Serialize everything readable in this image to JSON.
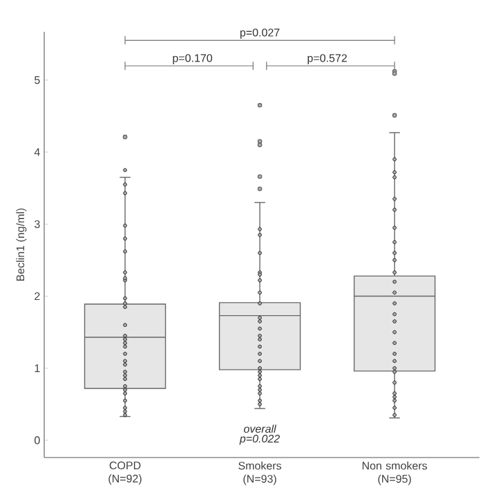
{
  "chart_data": {
    "type": "box",
    "ylabel": "Beclin1 (ng/ml)",
    "categories": [
      "COPD (N=92)",
      "Smokers (N=93)",
      "Non smokers (N=95)"
    ],
    "ylim": [
      -0.24,
      5.67
    ],
    "yticks": [
      0,
      1,
      2,
      3,
      4,
      5
    ],
    "grid": false,
    "color": "#e6e6e6",
    "boxes": [
      {
        "low": 0.33,
        "q1": 0.72,
        "median": 1.43,
        "q3": 1.89,
        "high": 3.65,
        "outliers": [
          4.21
        ]
      },
      {
        "low": 0.44,
        "q1": 0.98,
        "median": 1.73,
        "q3": 1.91,
        "high": 3.3,
        "outliers": [
          4.65,
          4.15,
          4.1,
          3.66,
          3.49
        ]
      },
      {
        "low": 0.31,
        "q1": 0.96,
        "median": 2.0,
        "q3": 2.28,
        "high": 4.27,
        "outliers": [
          5.12,
          5.09,
          4.51
        ]
      }
    ],
    "series": [
      {
        "type": "scatter",
        "color": "#aaaaaa",
        "marker": "circle",
        "x": [
          "COPD (N=92)",
          "COPD (N=92)",
          "COPD (N=92)",
          "COPD (N=92)",
          "COPD (N=92)",
          "COPD (N=92)",
          "COPD (N=92)",
          "COPD (N=92)",
          "COPD (N=92)",
          "COPD (N=92)",
          "COPD (N=92)",
          "COPD (N=92)",
          "COPD (N=92)",
          "COPD (N=92)",
          "COPD (N=92)",
          "COPD (N=92)",
          "COPD (N=92)",
          "COPD (N=92)",
          "COPD (N=92)",
          "COPD (N=92)",
          "COPD (N=92)",
          "COPD (N=92)",
          "COPD (N=92)",
          "COPD (N=92)",
          "COPD (N=92)",
          "COPD (N=92)",
          "COPD (N=92)",
          "COPD (N=92)",
          "COPD (N=92)",
          "COPD (N=92)",
          "Smokers (N=93)",
          "Smokers (N=93)",
          "Smokers (N=93)",
          "Smokers (N=93)",
          "Smokers (N=93)",
          "Smokers (N=93)",
          "Smokers (N=93)",
          "Smokers (N=93)",
          "Smokers (N=93)",
          "Smokers (N=93)",
          "Smokers (N=93)",
          "Smokers (N=93)",
          "Smokers (N=93)",
          "Smokers (N=93)",
          "Smokers (N=93)",
          "Smokers (N=93)",
          "Smokers (N=93)",
          "Smokers (N=93)",
          "Smokers (N=93)",
          "Smokers (N=93)",
          "Smokers (N=93)",
          "Smokers (N=93)",
          "Smokers (N=93)",
          "Smokers (N=93)",
          "Smokers (N=93)",
          "Non smokers (N=95)",
          "Non smokers (N=95)",
          "Non smokers (N=95)",
          "Non smokers (N=95)",
          "Non smokers (N=95)",
          "Non smokers (N=95)",
          "Non smokers (N=95)",
          "Non smokers (N=95)",
          "Non smokers (N=95)",
          "Non smokers (N=95)",
          "Non smokers (N=95)",
          "Non smokers (N=95)",
          "Non smokers (N=95)",
          "Non smokers (N=95)",
          "Non smokers (N=95)",
          "Non smokers (N=95)",
          "Non smokers (N=95)",
          "Non smokers (N=95)",
          "Non smokers (N=95)",
          "Non smokers (N=95)",
          "Non smokers (N=95)",
          "Non smokers (N=95)",
          "Non smokers (N=95)",
          "Non smokers (N=95)",
          "Non smokers (N=95)",
          "Non smokers (N=95)",
          "Non smokers (N=95)"
        ],
        "values": [
          3.75,
          3.55,
          3.43,
          2.98,
          2.8,
          2.62,
          2.33,
          2.22,
          1.97,
          1.85,
          1.6,
          1.45,
          1.35,
          1.2,
          1.1,
          0.95,
          0.85,
          0.75,
          0.65,
          0.55,
          0.45,
          0.35,
          0.7,
          0.9,
          1.05,
          1.3,
          1.4,
          1.9,
          2.25,
          0.4,
          2.93,
          2.85,
          2.6,
          2.33,
          2.22,
          2.05,
          1.9,
          1.7,
          1.55,
          1.45,
          1.3,
          1.2,
          1.1,
          0.95,
          0.85,
          0.75,
          0.65,
          0.55,
          0.5,
          1.65,
          1.4,
          0.9,
          0.7,
          2.3,
          1.0,
          3.9,
          3.72,
          3.65,
          3.35,
          3.2,
          2.95,
          2.75,
          2.6,
          2.5,
          2.33,
          2.2,
          2.05,
          1.9,
          1.75,
          1.65,
          1.5,
          1.35,
          1.2,
          1.1,
          0.95,
          0.8,
          0.65,
          0.55,
          0.45,
          0.35,
          1.0,
          0.6
        ]
      }
    ],
    "annotations": [
      "p=0.027",
      "p=0.170",
      "p=0.572",
      "overall",
      "p=0.022"
    ]
  }
}
